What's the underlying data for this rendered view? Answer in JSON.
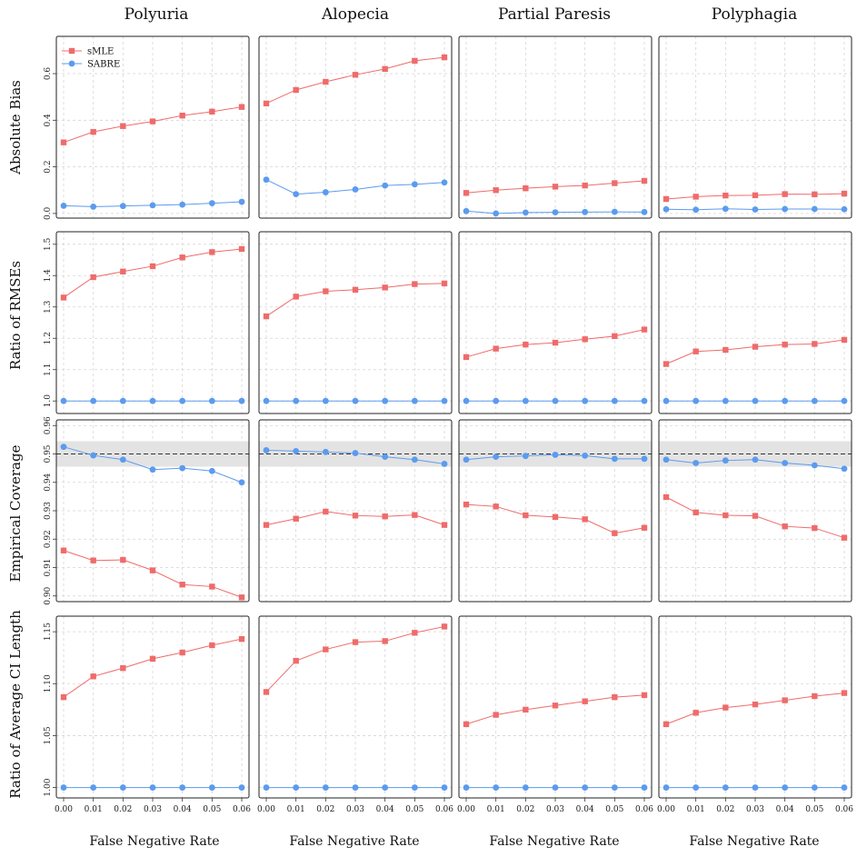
{
  "colors": {
    "sMLE": "#ef6b6b",
    "SABRE": "#5b9bef",
    "band": "#e3e3e3"
  },
  "legend": {
    "entries": [
      "sMLE",
      "SABRE"
    ],
    "placement": "top-left of first panel"
  },
  "columns": [
    "Polyuria",
    "Alopecia",
    "Partial Paresis",
    "Polyphagia"
  ],
  "x_label": "False Negative Rate",
  "chart_data": {
    "type": "line",
    "layout": "4x4 panel grid, columns share x-axis, rows share y-axis",
    "x": [
      0.0,
      0.01,
      0.02,
      0.03,
      0.04,
      0.05,
      0.06
    ],
    "x_tick_labels": [
      "0.00",
      "0.01",
      "0.02",
      "0.03",
      "0.04",
      "0.05",
      "0.06"
    ],
    "xlim": [
      0.0,
      0.06
    ],
    "grid": true,
    "rows": [
      {
        "ylabel": "Absolute Bias",
        "ylim": [
          -0.02,
          0.76
        ],
        "yticks": [
          0.0,
          0.2,
          0.4,
          0.6
        ],
        "ytick_labels": [
          "0.0",
          "0.2",
          "0.4",
          "0.6"
        ],
        "panels": [
          {
            "series": [
              {
                "name": "sMLE",
                "values": [
                  0.305,
                  0.35,
                  0.375,
                  0.395,
                  0.42,
                  0.437,
                  0.457
                ]
              },
              {
                "name": "SABRE",
                "values": [
                  0.033,
                  0.029,
                  0.032,
                  0.035,
                  0.038,
                  0.044,
                  0.05
                ]
              }
            ]
          },
          {
            "series": [
              {
                "name": "sMLE",
                "values": [
                  0.472,
                  0.53,
                  0.565,
                  0.595,
                  0.62,
                  0.655,
                  0.67
                ]
              },
              {
                "name": "SABRE",
                "values": [
                  0.145,
                  0.083,
                  0.091,
                  0.103,
                  0.12,
                  0.125,
                  0.133
                ]
              }
            ]
          },
          {
            "series": [
              {
                "name": "sMLE",
                "values": [
                  0.088,
                  0.1,
                  0.108,
                  0.115,
                  0.12,
                  0.13,
                  0.14
                ]
              },
              {
                "name": "SABRE",
                "values": [
                  0.01,
                  0.0,
                  0.004,
                  0.005,
                  0.006,
                  0.007,
                  0.006
                ]
              }
            ]
          },
          {
            "series": [
              {
                "name": "sMLE",
                "values": [
                  0.062,
                  0.072,
                  0.077,
                  0.078,
                  0.083,
                  0.082,
                  0.085
                ]
              },
              {
                "name": "SABRE",
                "values": [
                  0.018,
                  0.016,
                  0.02,
                  0.017,
                  0.019,
                  0.019,
                  0.018
                ]
              }
            ]
          }
        ]
      },
      {
        "ylabel": "Ratio of RMSEs",
        "ylim": [
          0.96,
          1.54
        ],
        "yticks": [
          1.0,
          1.1,
          1.2,
          1.3,
          1.4,
          1.5
        ],
        "ytick_labels": [
          "1.0",
          "1.1",
          "1.2",
          "1.3",
          "1.4",
          "1.5"
        ],
        "panels": [
          {
            "series": [
              {
                "name": "sMLE",
                "values": [
                  1.33,
                  1.395,
                  1.413,
                  1.43,
                  1.458,
                  1.475,
                  1.485
                ]
              },
              {
                "name": "SABRE",
                "values": [
                  1,
                  1,
                  1,
                  1,
                  1,
                  1,
                  1
                ]
              }
            ]
          },
          {
            "series": [
              {
                "name": "sMLE",
                "values": [
                  1.27,
                  1.333,
                  1.35,
                  1.355,
                  1.362,
                  1.373,
                  1.375
                ]
              },
              {
                "name": "SABRE",
                "values": [
                  1,
                  1,
                  1,
                  1,
                  1,
                  1,
                  1
                ]
              }
            ]
          },
          {
            "series": [
              {
                "name": "sMLE",
                "values": [
                  1.14,
                  1.167,
                  1.18,
                  1.186,
                  1.197,
                  1.207,
                  1.228
                ]
              },
              {
                "name": "SABRE",
                "values": [
                  1,
                  1,
                  1,
                  1,
                  1,
                  1,
                  1
                ]
              }
            ]
          },
          {
            "series": [
              {
                "name": "sMLE",
                "values": [
                  1.118,
                  1.158,
                  1.163,
                  1.173,
                  1.18,
                  1.182,
                  1.195
                ]
              },
              {
                "name": "SABRE",
                "values": [
                  1,
                  1,
                  1,
                  1,
                  1,
                  1,
                  1
                ]
              }
            ]
          }
        ]
      },
      {
        "ylabel": "Empirical Coverage",
        "ylim": [
          0.898,
          0.962
        ],
        "yticks": [
          0.9,
          0.91,
          0.92,
          0.93,
          0.94,
          0.95,
          0.96
        ],
        "ytick_labels": [
          "0.90",
          "0.91",
          "0.92",
          "0.93",
          "0.94",
          "0.95",
          "0.96"
        ],
        "reference_line": 0.95,
        "band": [
          0.9455,
          0.9545
        ],
        "panels": [
          {
            "series": [
              {
                "name": "sMLE",
                "values": [
                  0.916,
                  0.9125,
                  0.9127,
                  0.909,
                  0.904,
                  0.9033,
                  0.8995
                ]
              },
              {
                "name": "SABRE",
                "values": [
                  0.9525,
                  0.9495,
                  0.948,
                  0.9445,
                  0.945,
                  0.944,
                  0.94
                ]
              }
            ]
          },
          {
            "series": [
              {
                "name": "sMLE",
                "values": [
                  0.925,
                  0.9272,
                  0.9297,
                  0.9283,
                  0.928,
                  0.9285,
                  0.925
                ]
              },
              {
                "name": "SABRE",
                "values": [
                  0.9513,
                  0.951,
                  0.9507,
                  0.9503,
                  0.949,
                  0.948,
                  0.9465
                ]
              }
            ]
          },
          {
            "series": [
              {
                "name": "sMLE",
                "values": [
                  0.9322,
                  0.9315,
                  0.9284,
                  0.9278,
                  0.927,
                  0.9221,
                  0.924
                ]
              },
              {
                "name": "SABRE",
                "values": [
                  0.948,
                  0.949,
                  0.9493,
                  0.9497,
                  0.9494,
                  0.9483,
                  0.9483
                ]
              }
            ]
          },
          {
            "series": [
              {
                "name": "sMLE",
                "values": [
                  0.9348,
                  0.9294,
                  0.9284,
                  0.9282,
                  0.9245,
                  0.9239,
                  0.9205
                ]
              },
              {
                "name": "SABRE",
                "values": [
                  0.948,
                  0.9468,
                  0.9477,
                  0.948,
                  0.9468,
                  0.946,
                  0.9448
                ]
              }
            ]
          }
        ]
      },
      {
        "ylabel": "Ratio of Average CI Length",
        "ylim": [
          0.99,
          1.165
        ],
        "yticks": [
          1.0,
          1.05,
          1.1,
          1.15
        ],
        "ytick_labels": [
          "1.00",
          "1.05",
          "1.10",
          "1.15"
        ],
        "panels": [
          {
            "series": [
              {
                "name": "sMLE",
                "values": [
                  1.087,
                  1.107,
                  1.115,
                  1.124,
                  1.13,
                  1.137,
                  1.143
                ]
              },
              {
                "name": "SABRE",
                "values": [
                  1,
                  1,
                  1,
                  1,
                  1,
                  1,
                  1
                ]
              }
            ]
          },
          {
            "series": [
              {
                "name": "sMLE",
                "values": [
                  1.092,
                  1.122,
                  1.133,
                  1.14,
                  1.141,
                  1.149,
                  1.155
                ]
              },
              {
                "name": "SABRE",
                "values": [
                  1,
                  1,
                  1,
                  1,
                  1,
                  1,
                  1
                ]
              }
            ]
          },
          {
            "series": [
              {
                "name": "sMLE",
                "values": [
                  1.061,
                  1.07,
                  1.075,
                  1.079,
                  1.083,
                  1.087,
                  1.089
                ]
              },
              {
                "name": "SABRE",
                "values": [
                  1,
                  1,
                  1,
                  1,
                  1,
                  1,
                  1
                ]
              }
            ]
          },
          {
            "series": [
              {
                "name": "sMLE",
                "values": [
                  1.061,
                  1.072,
                  1.077,
                  1.08,
                  1.084,
                  1.088,
                  1.091
                ]
              },
              {
                "name": "SABRE",
                "values": [
                  1,
                  1,
                  1,
                  1,
                  1,
                  1,
                  1
                ]
              }
            ]
          }
        ]
      }
    ]
  }
}
